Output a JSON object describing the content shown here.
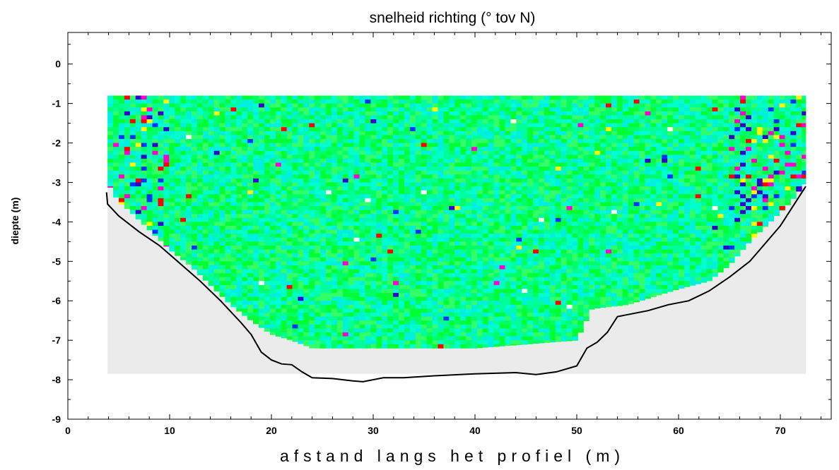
{
  "chart_data": {
    "type": "heatmap",
    "title": "snelheid richting (° tov N)",
    "xlabel": "afstand langs het profiel (m)",
    "ylabel": "diepte (m)",
    "xlim": [
      0,
      75
    ],
    "ylim": [
      -9,
      0.8
    ],
    "xticks": [
      0,
      10,
      20,
      30,
      40,
      50,
      60,
      70
    ],
    "yticks": [
      0,
      -1,
      -2,
      -3,
      -4,
      -5,
      -6,
      -7,
      -8,
      -9
    ],
    "grid": false,
    "colors": {
      "dominant": [
        "#00ff33",
        "#00ff66",
        "#00ff99",
        "#00ffcc",
        "#00f0e0",
        "#33ff66"
      ],
      "sparse": [
        "#ffff00",
        "#0033ff",
        "#ff00cc",
        "#ff0000",
        "#3300cc",
        "#ffffff"
      ],
      "shadow": "#ebebeb",
      "bottom_line": "#000000"
    },
    "measured_region": {
      "top_depth": -0.8,
      "x_range": [
        3.9,
        72.5
      ],
      "lower_boundary": [
        [
          3.9,
          -3.0
        ],
        [
          5,
          -3.5
        ],
        [
          6,
          -3.7
        ],
        [
          8,
          -4.2
        ],
        [
          10,
          -4.7
        ],
        [
          12,
          -5.1
        ],
        [
          14,
          -5.6
        ],
        [
          16,
          -6.1
        ],
        [
          18,
          -6.5
        ],
        [
          20,
          -6.85
        ],
        [
          22,
          -7.0
        ],
        [
          24,
          -7.2
        ],
        [
          30,
          -7.2
        ],
        [
          40,
          -7.2
        ],
        [
          50,
          -7.0
        ],
        [
          51.5,
          -6.2
        ],
        [
          55,
          -6.1
        ],
        [
          60,
          -5.7
        ],
        [
          63,
          -5.5
        ],
        [
          65,
          -5.1
        ],
        [
          67,
          -4.5
        ],
        [
          69,
          -4.0
        ],
        [
          71,
          -3.5
        ],
        [
          72.5,
          -3.0
        ]
      ]
    },
    "shadow_region": {
      "x_range": [
        3.9,
        72.5
      ],
      "depth_range": [
        -3.0,
        -7.85
      ]
    },
    "bottom_profile": [
      [
        3.8,
        -3.25
      ],
      [
        3.9,
        -3.55
      ],
      [
        5,
        -3.85
      ],
      [
        7,
        -4.25
      ],
      [
        9,
        -4.6
      ],
      [
        11,
        -5.05
      ],
      [
        13,
        -5.5
      ],
      [
        15,
        -6.0
      ],
      [
        17,
        -6.55
      ],
      [
        18,
        -6.85
      ],
      [
        19,
        -7.3
      ],
      [
        20,
        -7.5
      ],
      [
        21,
        -7.6
      ],
      [
        22,
        -7.62
      ],
      [
        23,
        -7.8
      ],
      [
        24,
        -7.95
      ],
      [
        26,
        -7.97
      ],
      [
        28,
        -8.03
      ],
      [
        29,
        -8.05
      ],
      [
        31,
        -7.95
      ],
      [
        33,
        -7.95
      ],
      [
        36,
        -7.9
      ],
      [
        40,
        -7.85
      ],
      [
        44,
        -7.82
      ],
      [
        46,
        -7.87
      ],
      [
        48,
        -7.8
      ],
      [
        50,
        -7.65
      ],
      [
        51,
        -7.2
      ],
      [
        52,
        -7.05
      ],
      [
        53,
        -6.8
      ],
      [
        54,
        -6.4
      ],
      [
        55,
        -6.35
      ],
      [
        57,
        -6.25
      ],
      [
        59,
        -6.1
      ],
      [
        61,
        -6.0
      ],
      [
        63,
        -5.75
      ],
      [
        65,
        -5.4
      ],
      [
        67,
        -5.0
      ],
      [
        68,
        -4.7
      ],
      [
        70,
        -4.1
      ],
      [
        71.5,
        -3.5
      ],
      [
        72.5,
        -3.1
      ]
    ]
  }
}
